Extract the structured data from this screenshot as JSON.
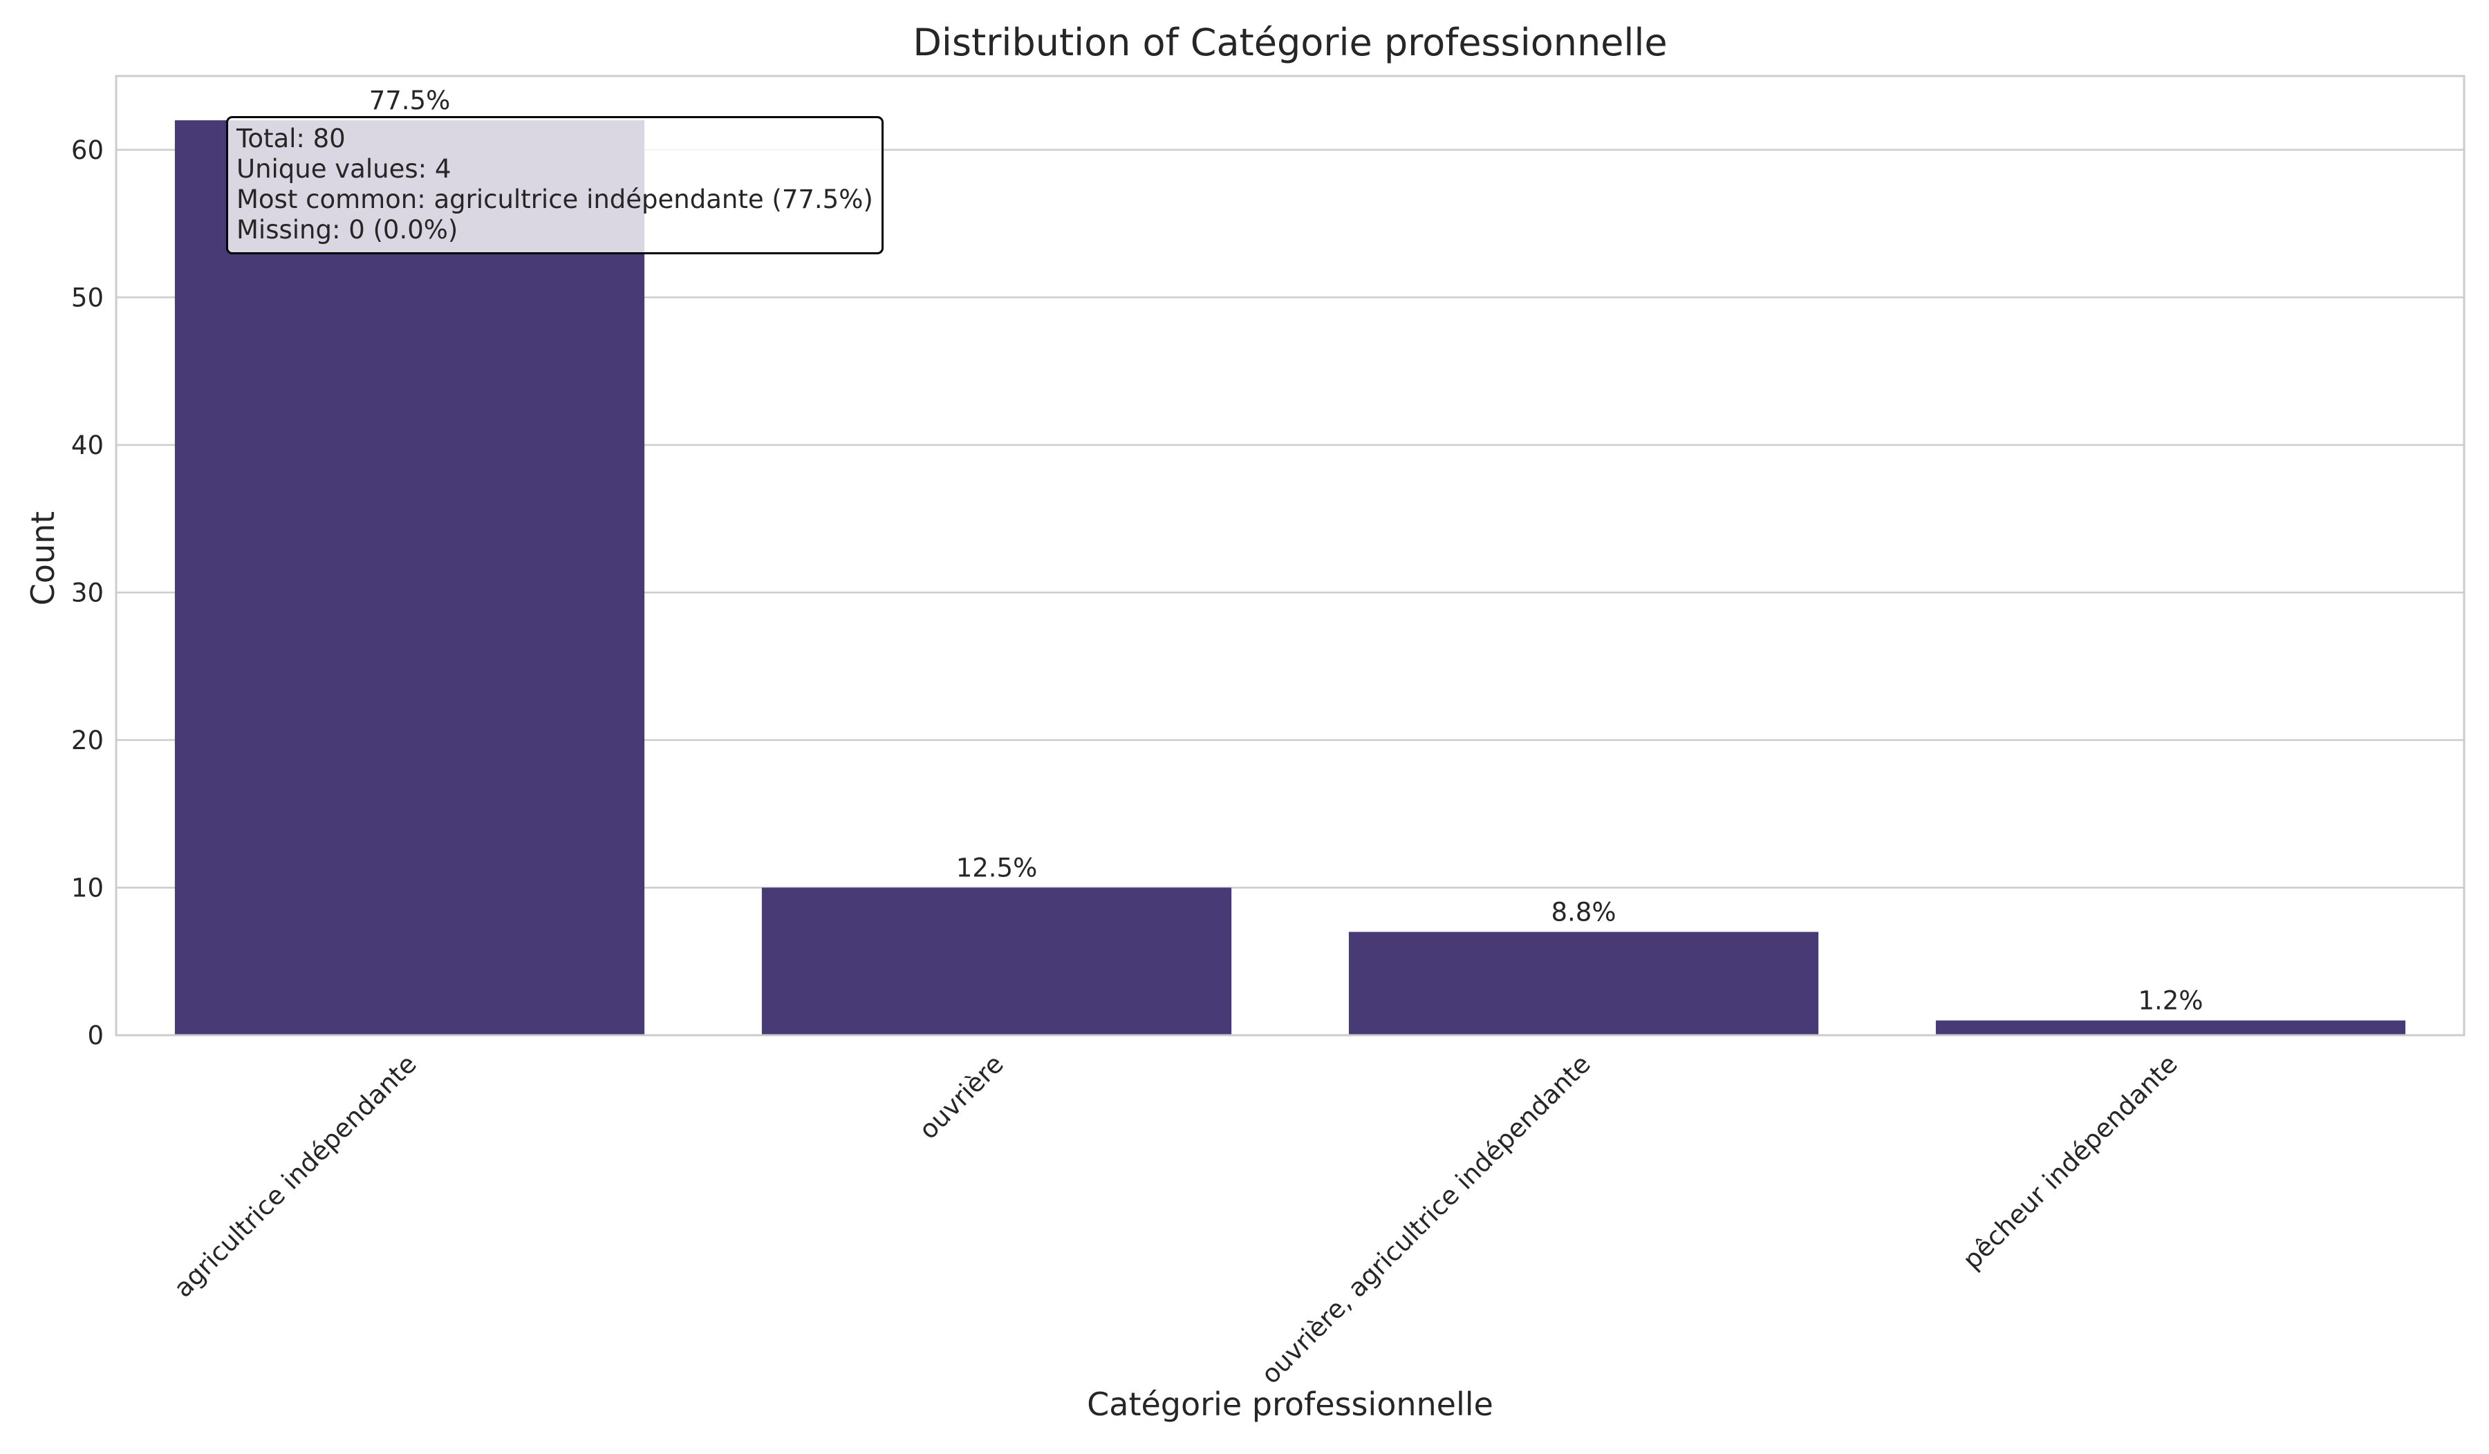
{
  "chart_data": {
    "type": "bar",
    "title": "Distribution of Catégorie professionnelle",
    "xlabel": "Catégorie professionnelle",
    "ylabel": "Count",
    "categories": [
      "agricultrice indépendante",
      "ouvrière",
      "ouvrière, agricultrice indépendante",
      "pêcheur indépendante"
    ],
    "values": [
      62,
      10,
      7,
      1
    ],
    "value_labels": [
      "77.5%",
      "12.5%",
      "8.8%",
      "1.2%"
    ],
    "ylim": [
      0,
      65
    ],
    "yticks": [
      0,
      10,
      20,
      30,
      40,
      50,
      60
    ],
    "grid": true,
    "bar_color": "#483a75",
    "stats": {
      "line1": "Total: 80",
      "line2": "Unique values: 4",
      "line3": "Most common: agricultrice indépendante (77.5%)",
      "line4": "Missing: 0 (0.0%)"
    }
  }
}
